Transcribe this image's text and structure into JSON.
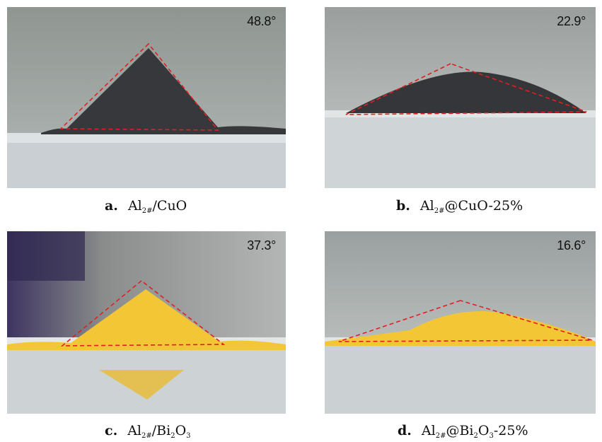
{
  "panels": [
    {
      "letter": "a.",
      "label_parts": [
        "Al",
        "2#",
        "/CuO"
      ],
      "angle": "48.8°",
      "powder": "dark-gray"
    },
    {
      "letter": "b.",
      "label_parts": [
        "Al",
        "2#",
        "@CuO-25%"
      ],
      "angle": "22.9°",
      "powder": "dark-gray"
    },
    {
      "letter": "c.",
      "label_parts": [
        "Al",
        "2#",
        "/Bi",
        "2",
        "O",
        "3"
      ],
      "angle": "37.3°",
      "powder": "yellow"
    },
    {
      "letter": "d.",
      "label_parts": [
        "Al",
        "2#",
        "@Bi",
        "2",
        "O",
        "3",
        "-25%"
      ],
      "angle": "16.6°",
      "powder": "yellow"
    }
  ],
  "colors": {
    "guide_line": "#e02020",
    "dark_powder": "#3b3b3f",
    "yellow_powder": "#f2c634"
  }
}
